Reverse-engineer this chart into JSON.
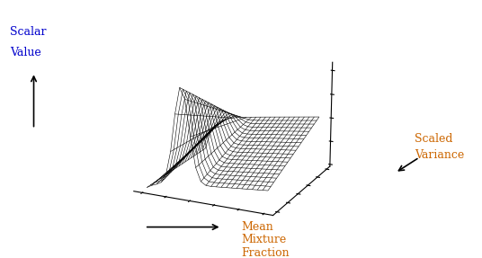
{
  "xlabel_text": "Mean\nMixture\nFraction",
  "xlabel_color": "#cc6600",
  "ylabel_text": "Scaled\nVariance",
  "ylabel_color": "#cc6600",
  "zlabel_text": "Scalar\nValue",
  "zlabel_color": "#0000cc",
  "scalar_variance_color": "#cc6600",
  "scalar_value_color": "#0000cc",
  "background_color": "#ffffff",
  "surface_color": "#000000",
  "nx": 25,
  "ny": 20,
  "elev": 18,
  "azim": -65,
  "figsize": [
    5.36,
    2.87
  ],
  "dpi": 100
}
